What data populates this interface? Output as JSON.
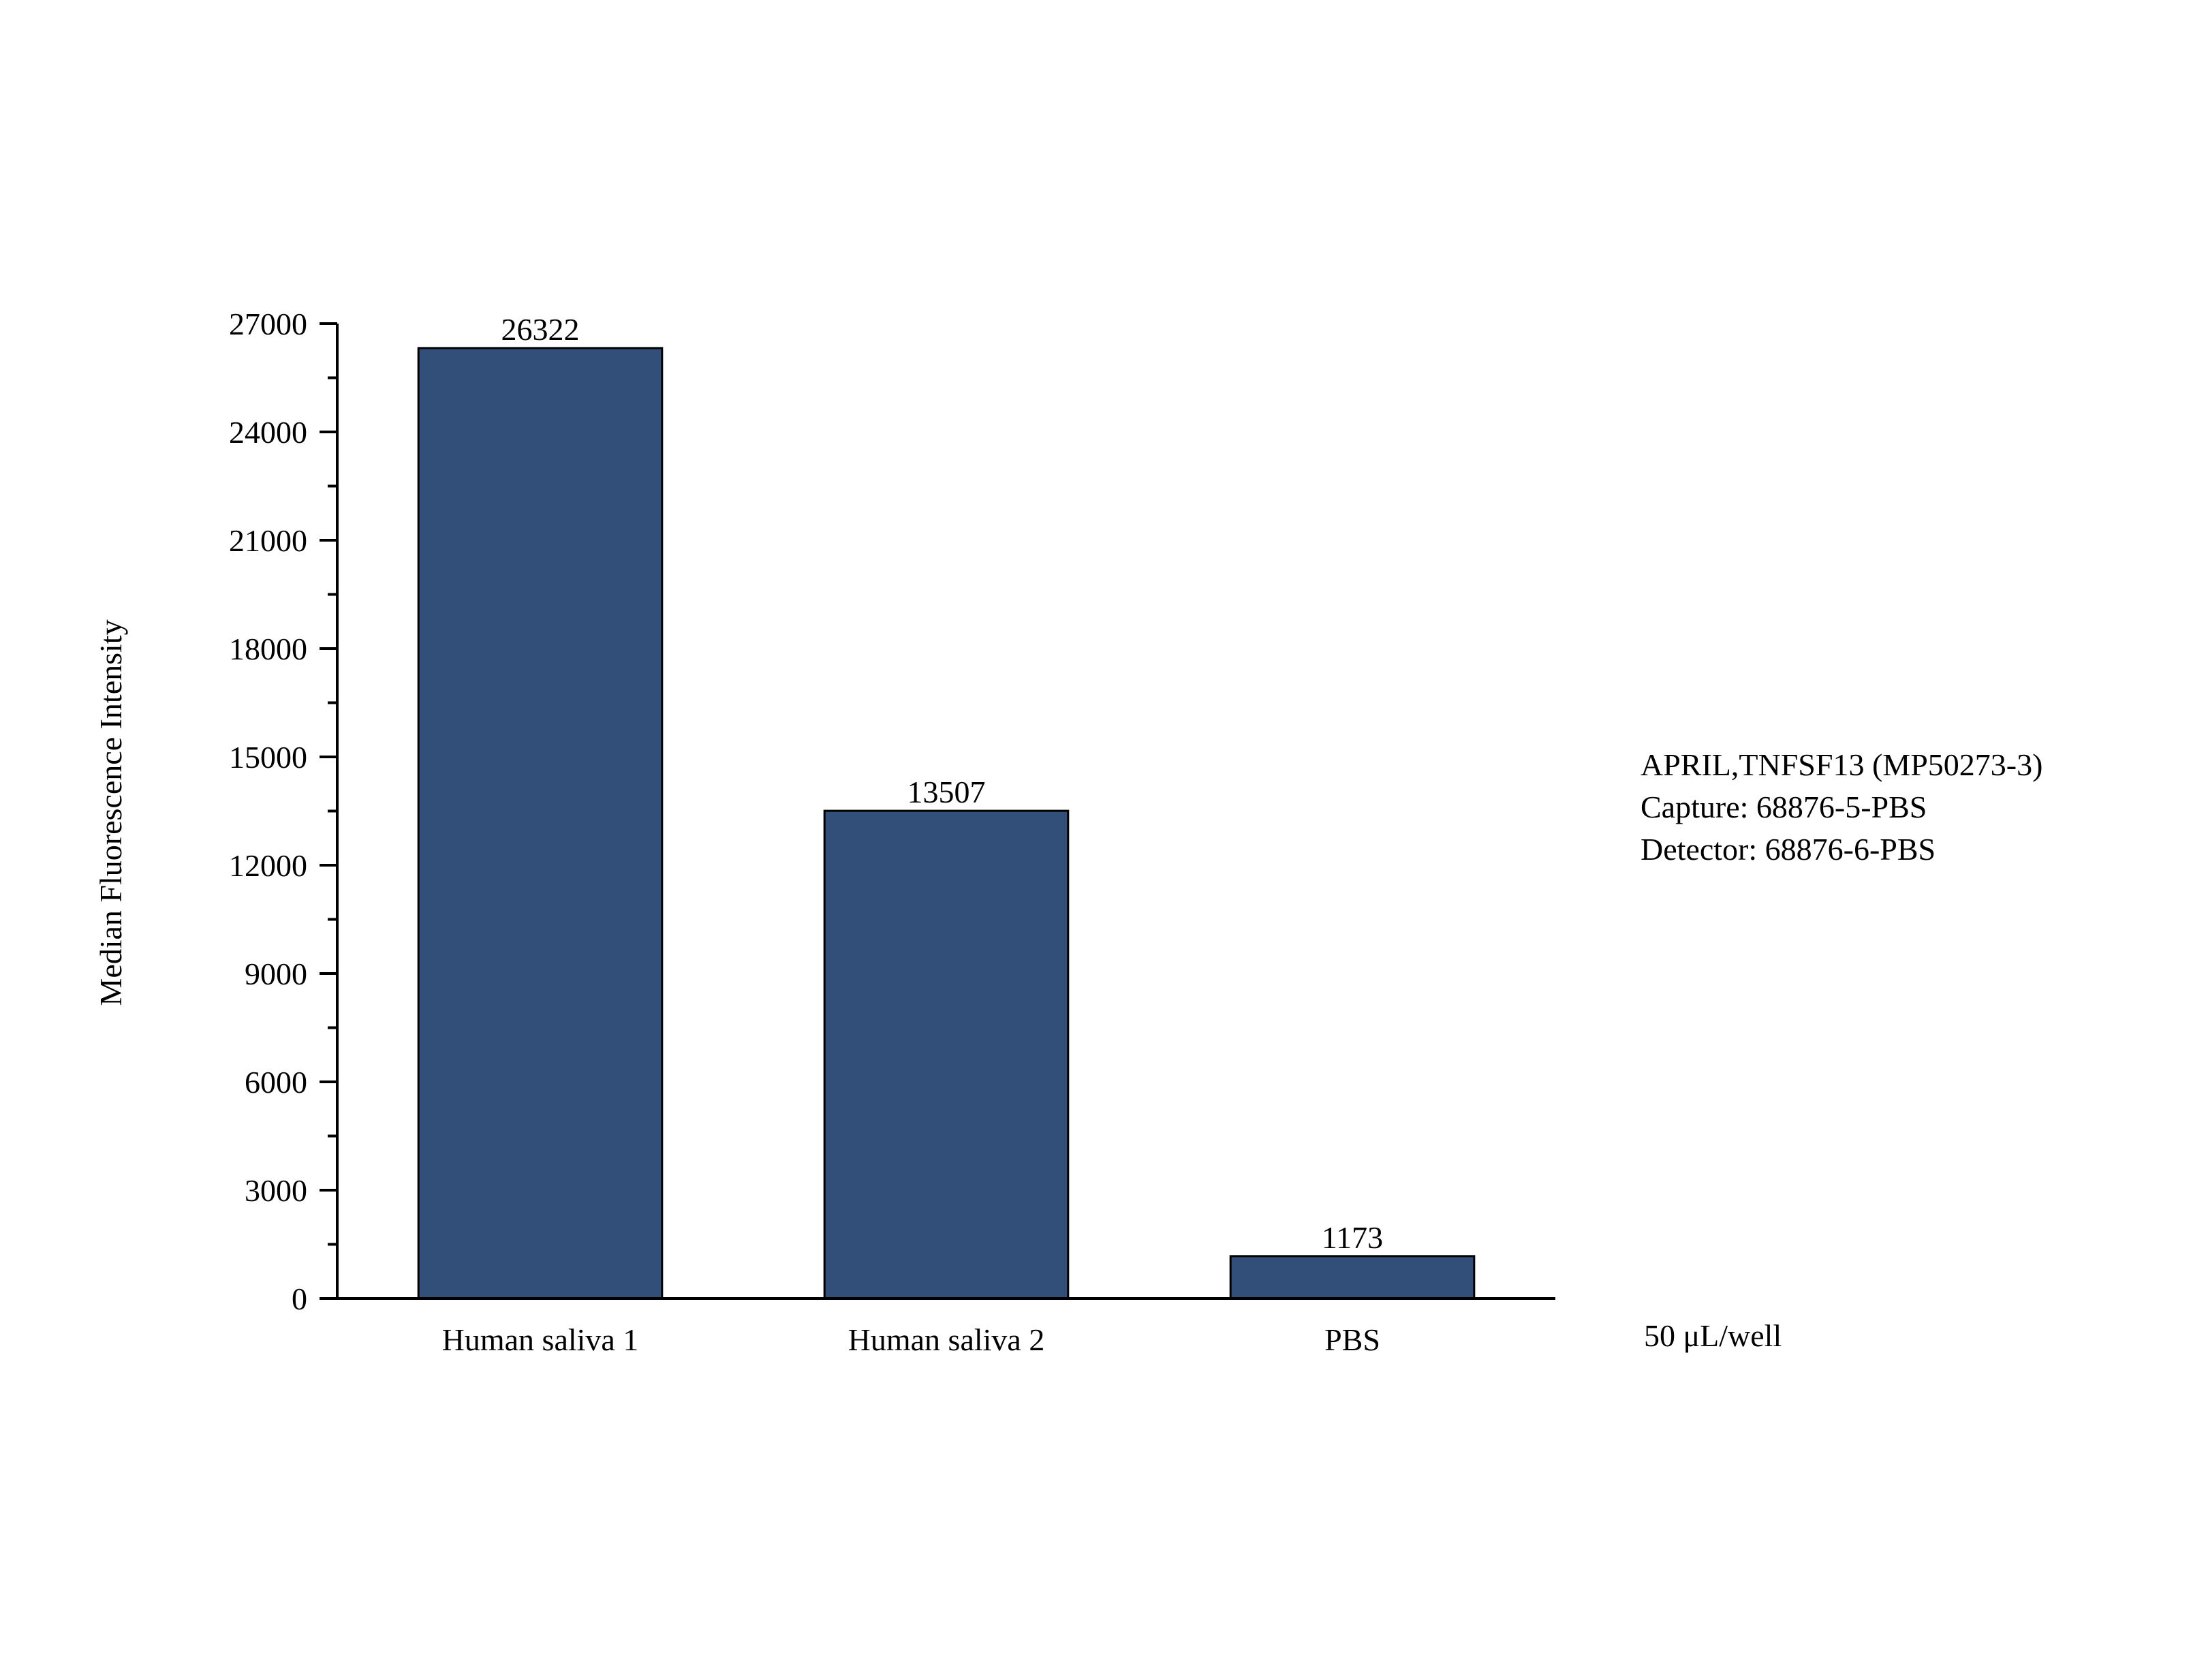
{
  "chart_data": {
    "type": "bar",
    "title": "",
    "categories": [
      "Human saliva 1",
      "Human saliva 2",
      "PBS"
    ],
    "values": [
      26322,
      13507,
      1173
    ],
    "value_labels": [
      "26322",
      "13507",
      "1173"
    ],
    "xlabel": "",
    "ylabel": "Median Fluorescence Intensity",
    "ylim": [
      0,
      27000
    ],
    "yticks": [
      0,
      3000,
      6000,
      9000,
      12000,
      15000,
      18000,
      21000,
      24000,
      27000
    ],
    "ytick_labels": [
      "0",
      "3000",
      "6000",
      "9000",
      "12000",
      "15000",
      "18000",
      "21000",
      "24000",
      "27000"
    ],
    "grid": false,
    "legend": "none",
    "bar_color": "#324f79",
    "annotations": {
      "lines": [
        "APRIL,TNFSF13 (MP50273-3)",
        "Capture: 68876-5-PBS",
        "Detector: 68876-6-PBS"
      ],
      "volume": "50 μL/well"
    }
  }
}
